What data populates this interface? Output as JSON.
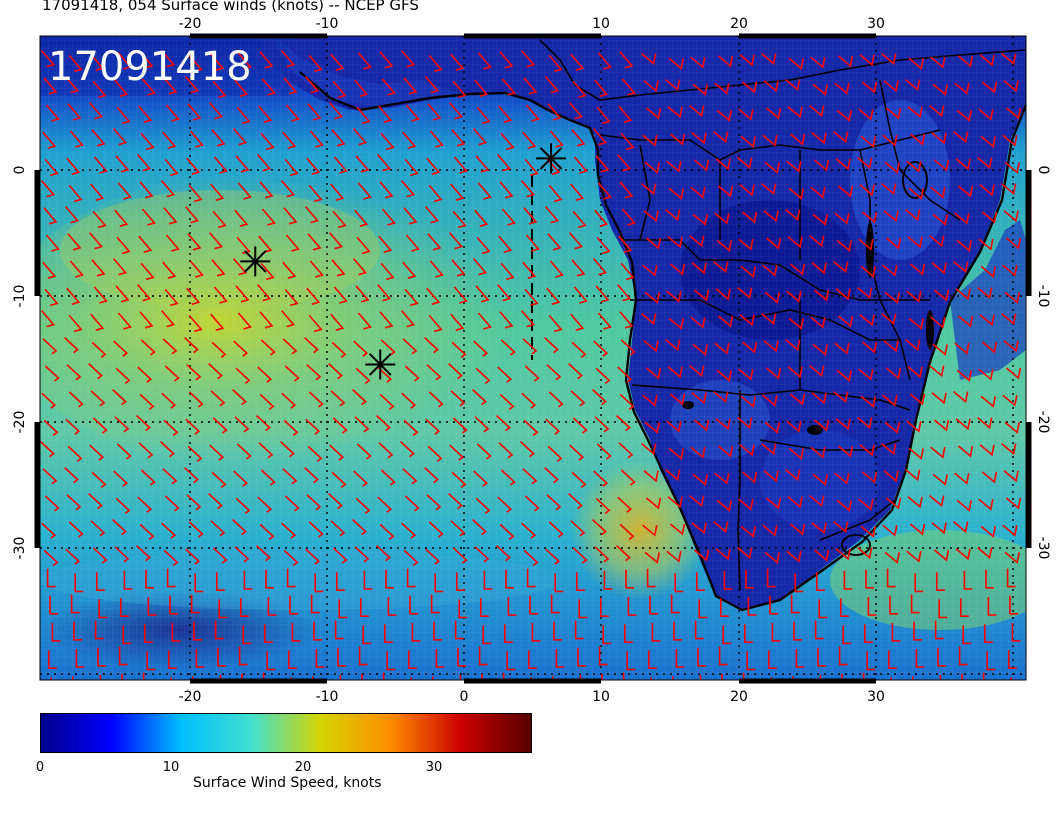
{
  "title": "17091418, 054 Surface winds (knots) -- NCEP GFS",
  "stamp": "17091418",
  "map": {
    "lon_ticks": [
      "-20",
      "-10",
      "0",
      "10",
      "20",
      "30"
    ],
    "lat_ticks": [
      "0",
      "-10",
      "-20",
      "-30"
    ],
    "lon_range": [
      -30,
      41
    ],
    "lat_range": [
      -40,
      10
    ],
    "dotted_grid": true,
    "wind_barb_color": "#ff0000",
    "markers": [
      {
        "type": "asterisk",
        "lon": -14.5,
        "lat": -7.5
      },
      {
        "type": "asterisk",
        "lon": -5.5,
        "lat": -15.5
      },
      {
        "type": "asterisk",
        "lon": 6.8,
        "lat": 0.5
      }
    ]
  },
  "colorbar": {
    "ticks": [
      "0",
      "10",
      "20",
      "30"
    ],
    "label": "Surface Wind Speed, knots",
    "range": [
      0,
      36
    ],
    "colors": [
      "#00008b",
      "#0000ff",
      "#00bfff",
      "#40e0d0",
      "#d4d400",
      "#ff8c00",
      "#cc0000",
      "#5a0000"
    ]
  }
}
